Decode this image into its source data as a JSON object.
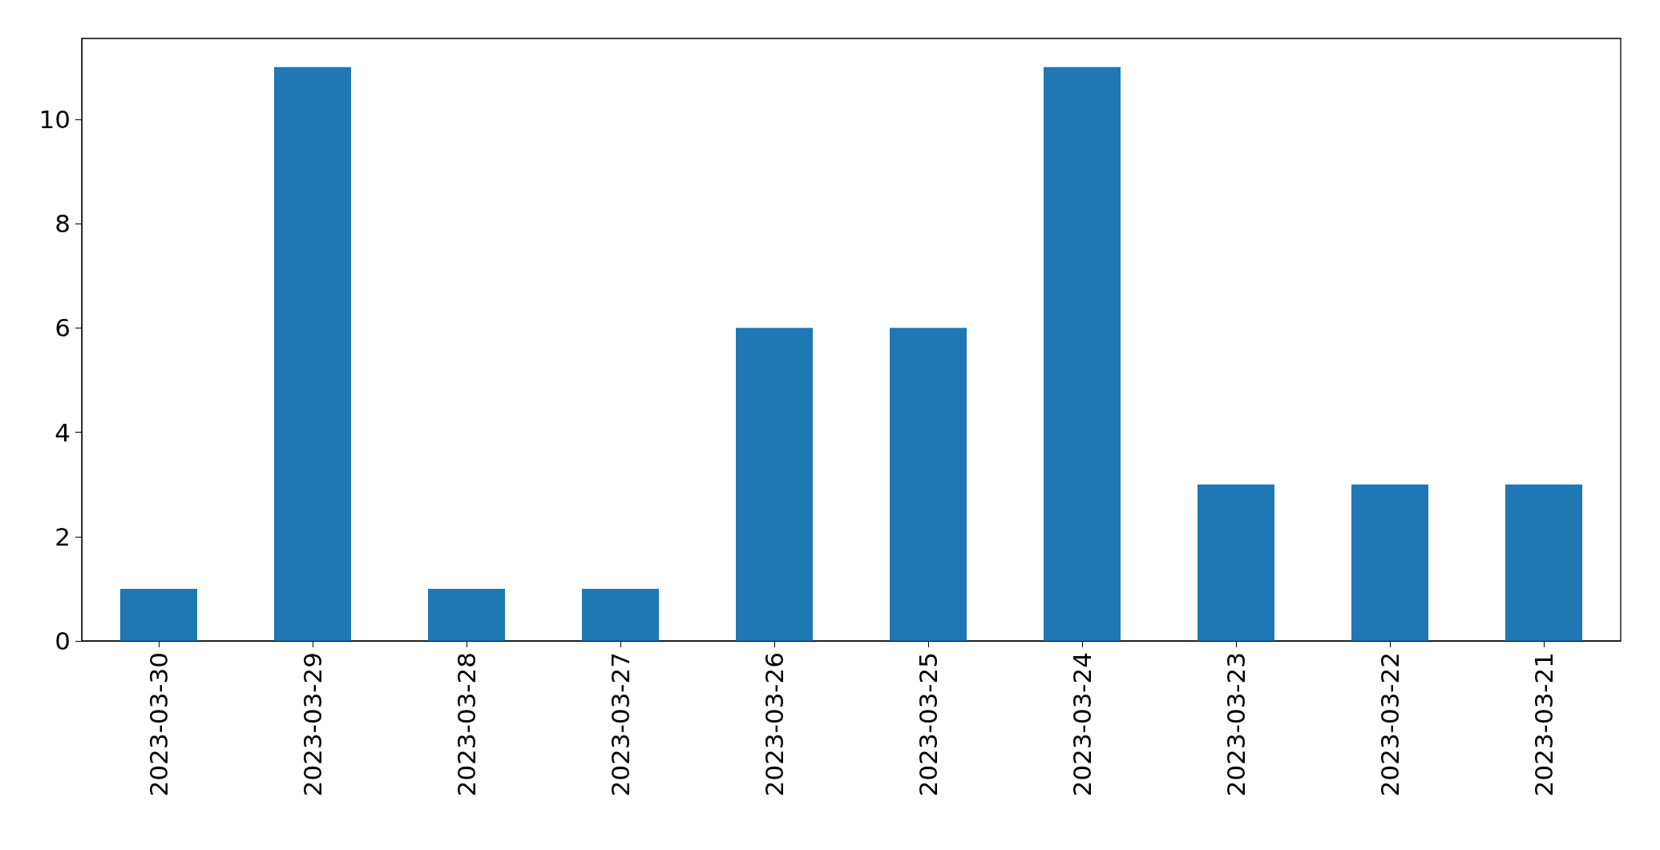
{
  "chart_data": {
    "type": "bar",
    "categories": [
      "2023-03-30",
      "2023-03-29",
      "2023-03-28",
      "2023-03-27",
      "2023-03-26",
      "2023-03-25",
      "2023-03-24",
      "2023-03-23",
      "2023-03-22",
      "2023-03-21"
    ],
    "values": [
      1,
      11,
      1,
      1,
      6,
      6,
      11,
      3,
      3,
      3
    ],
    "color": "#1f77b4",
    "ylim": [
      0,
      11.55
    ],
    "yticks": [
      0,
      2,
      4,
      6,
      8,
      10
    ],
    "grid": false
  }
}
